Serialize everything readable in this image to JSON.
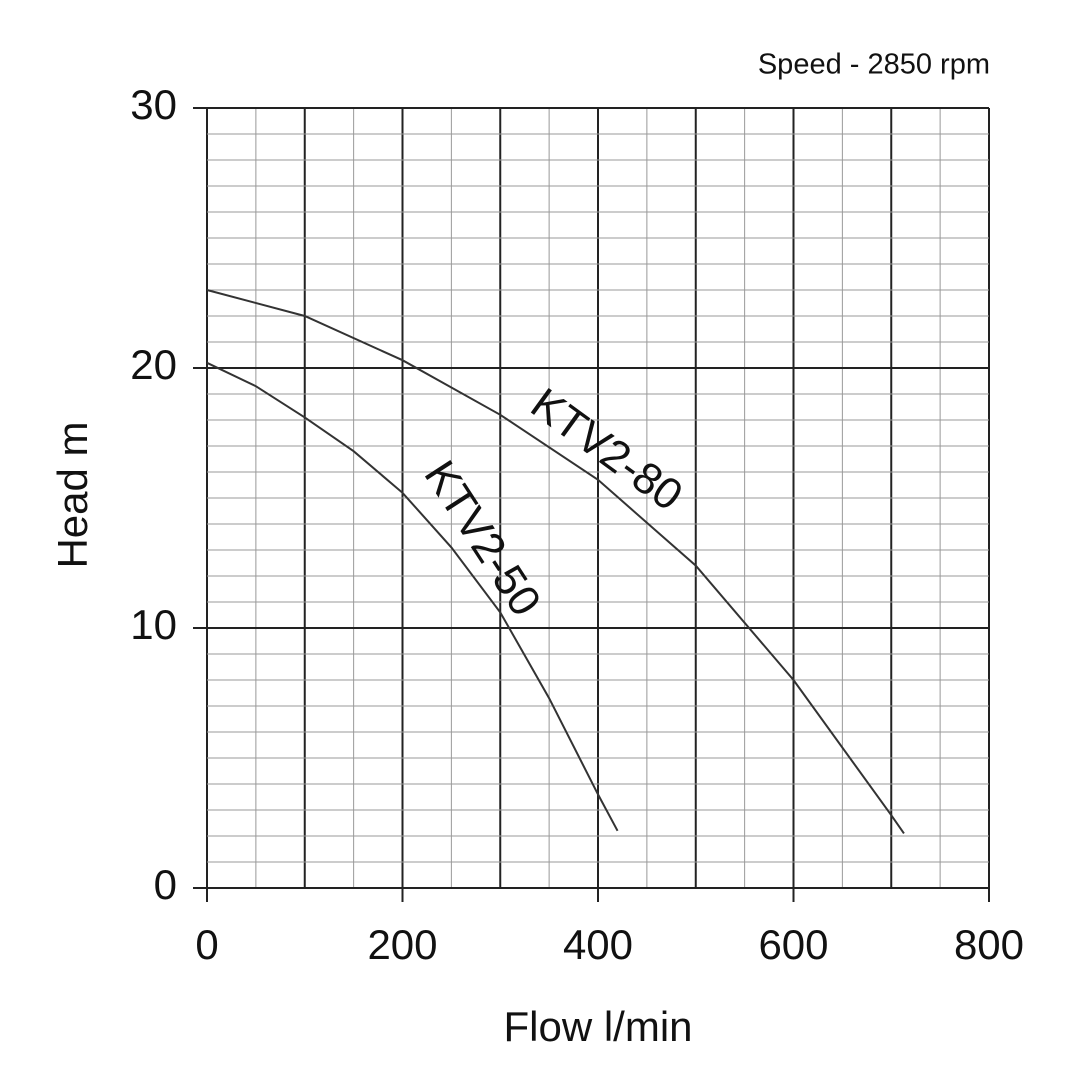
{
  "chart_data": {
    "type": "line",
    "subtitle": "Speed - 2850 rpm",
    "x_label": "Flow l/min",
    "y_label": "Head m",
    "xlim": [
      0,
      800
    ],
    "xticks": [
      0,
      200,
      400,
      600,
      800
    ],
    "ylim": [
      0,
      30
    ],
    "yticks": [
      0,
      10,
      20,
      30
    ],
    "grid": {
      "x_step": 50,
      "y_step": 1,
      "x_major": 100,
      "y_major": 10
    },
    "series": [
      {
        "name": "KTV2-50",
        "color": "#333333",
        "x": [
          0,
          50,
          100,
          150,
          200,
          250,
          300,
          350,
          400,
          420
        ],
        "values": [
          20.2,
          19.3,
          18.1,
          16.8,
          15.2,
          13.1,
          10.6,
          7.3,
          3.6,
          2.2
        ]
      },
      {
        "name": "KTV2-80",
        "color": "#333333",
        "x": [
          0,
          100,
          200,
          300,
          400,
          500,
          600,
          700,
          713
        ],
        "values": [
          23.0,
          22.0,
          20.3,
          18.2,
          15.7,
          12.4,
          8.0,
          2.8,
          2.1
        ]
      }
    ]
  }
}
